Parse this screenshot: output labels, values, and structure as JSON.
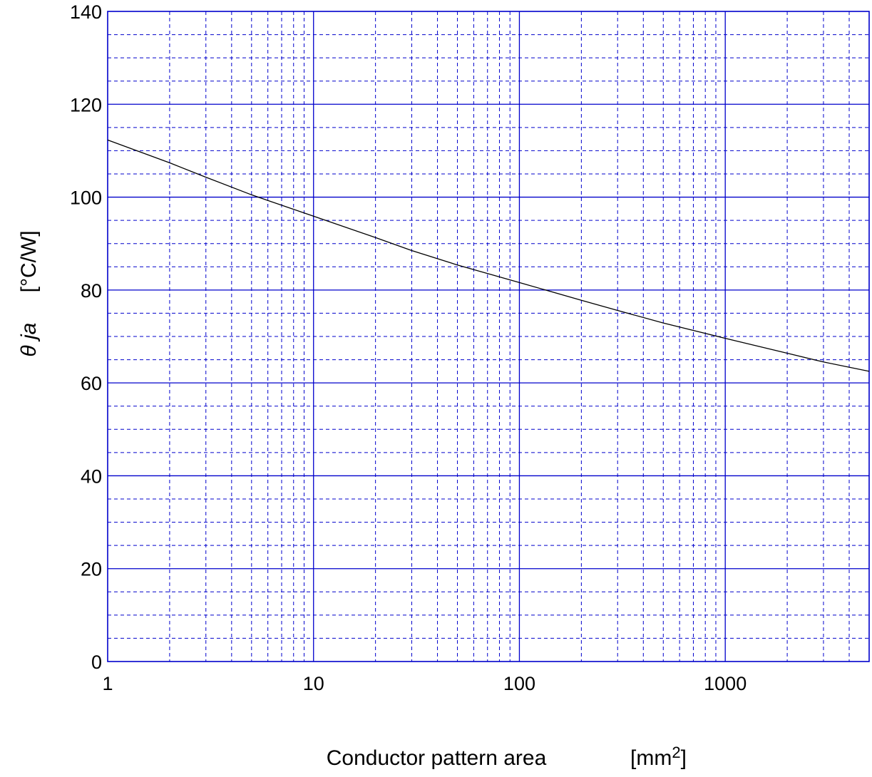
{
  "chart_data": {
    "type": "line",
    "xscale": "log",
    "xlim": [
      1,
      5000
    ],
    "ylim": [
      0,
      140
    ],
    "grid": true,
    "grid_color": "#0000cc",
    "line_color": "#000000",
    "ylabel_symbol": "θ ja",
    "ylabel_unit": "[°C/W]",
    "xlabel_text": "Conductor pattern area",
    "xlabel_unit_prefix": "[mm",
    "xlabel_unit_exp": "2",
    "xlabel_unit_suffix": "]",
    "x_ticks": [
      {
        "value": 1,
        "label": "1"
      },
      {
        "value": 10,
        "label": "10"
      },
      {
        "value": 100,
        "label": "100"
      },
      {
        "value": 1000,
        "label": "1000"
      }
    ],
    "y_ticks": [
      {
        "value": 0,
        "label": "0"
      },
      {
        "value": 20,
        "label": "20"
      },
      {
        "value": 40,
        "label": "40"
      },
      {
        "value": 60,
        "label": "60"
      },
      {
        "value": 80,
        "label": "80"
      },
      {
        "value": 100,
        "label": "100"
      },
      {
        "value": 120,
        "label": "120"
      },
      {
        "value": 140,
        "label": "140"
      }
    ],
    "series": [
      {
        "x": [
          1,
          2,
          3,
          5,
          10,
          20,
          30,
          50,
          100,
          200,
          300,
          500,
          1000,
          2000,
          3000,
          5000
        ],
        "y": [
          112.3,
          107.4,
          104.3,
          100.5,
          95.9,
          91.3,
          88.5,
          85.4,
          81.6,
          77.8,
          75.6,
          72.9,
          69.6,
          66.4,
          64.5,
          62.5
        ]
      }
    ]
  }
}
